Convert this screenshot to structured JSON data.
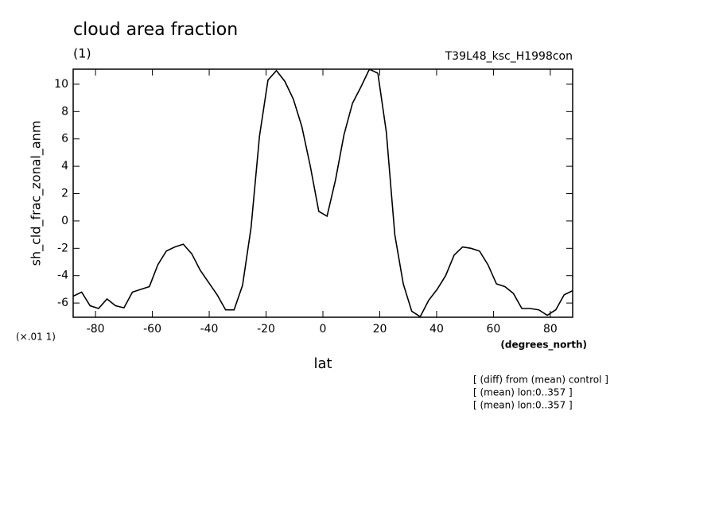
{
  "chart_data": {
    "type": "line",
    "title": "cloud area fraction",
    "subtitle": "(1)",
    "experiment": "T39L48_ksc_H1998con",
    "ylabel": "sh_cld_frac_zonal_anm",
    "yunit": "(×.01 1)",
    "xunit": "(degrees_north)",
    "xlabel": "lat",
    "notes": [
      "[ (diff) from (mean) control ]",
      "[ (mean) lon:0..357 ]",
      "[ (mean) lon:0..357 ]"
    ],
    "xlim": [
      -87.86,
      87.86
    ],
    "ylim": [
      -7.04,
      11.1
    ],
    "xticks": [
      -80,
      -60,
      -40,
      -20,
      0,
      20,
      40,
      60,
      80
    ],
    "yticks": [
      -6,
      -4,
      -2,
      0,
      2,
      4,
      6,
      8,
      10
    ],
    "color": "#000000",
    "x": [
      -87.86,
      -84.88,
      -81.91,
      -78.93,
      -75.95,
      -72.97,
      -69.99,
      -67.01,
      -64.03,
      -61.05,
      -58.07,
      -55.09,
      -52.11,
      -49.13,
      -46.15,
      -43.17,
      -40.19,
      -37.21,
      -34.23,
      -31.25,
      -28.27,
      -25.29,
      -22.31,
      -19.33,
      -16.35,
      -13.37,
      -10.39,
      -7.41,
      -4.43,
      -1.45,
      1.45,
      4.43,
      7.41,
      10.39,
      13.37,
      16.35,
      19.33,
      22.31,
      25.29,
      28.27,
      31.25,
      34.23,
      37.21,
      40.19,
      43.17,
      46.15,
      49.13,
      52.11,
      55.09,
      58.07,
      61.05,
      64.03,
      67.01,
      69.99,
      72.97,
      75.95,
      78.93,
      81.91,
      84.88,
      87.86
    ],
    "values": [
      -5.5,
      -5.2,
      -6.2,
      -6.4,
      -5.7,
      -6.2,
      -6.35,
      -5.2,
      -5.0,
      -4.8,
      -3.2,
      -2.2,
      -1.9,
      -1.7,
      -2.4,
      -3.6,
      -4.5,
      -5.4,
      -6.5,
      -6.5,
      -4.7,
      -0.5,
      6.2,
      10.3,
      11.0,
      10.2,
      8.9,
      6.9,
      4.0,
      0.7,
      0.35,
      3.0,
      6.3,
      8.6,
      9.8,
      11.1,
      10.8,
      6.5,
      -1.0,
      -4.6,
      -6.6,
      -7.0,
      -5.8,
      -5.0,
      -4.0,
      -2.5,
      -1.9,
      -2.0,
      -2.2,
      -3.2,
      -4.6,
      -4.8,
      -5.3,
      -6.4,
      -6.4,
      -6.5,
      -6.9,
      -6.5,
      -5.4,
      -5.1
    ]
  }
}
